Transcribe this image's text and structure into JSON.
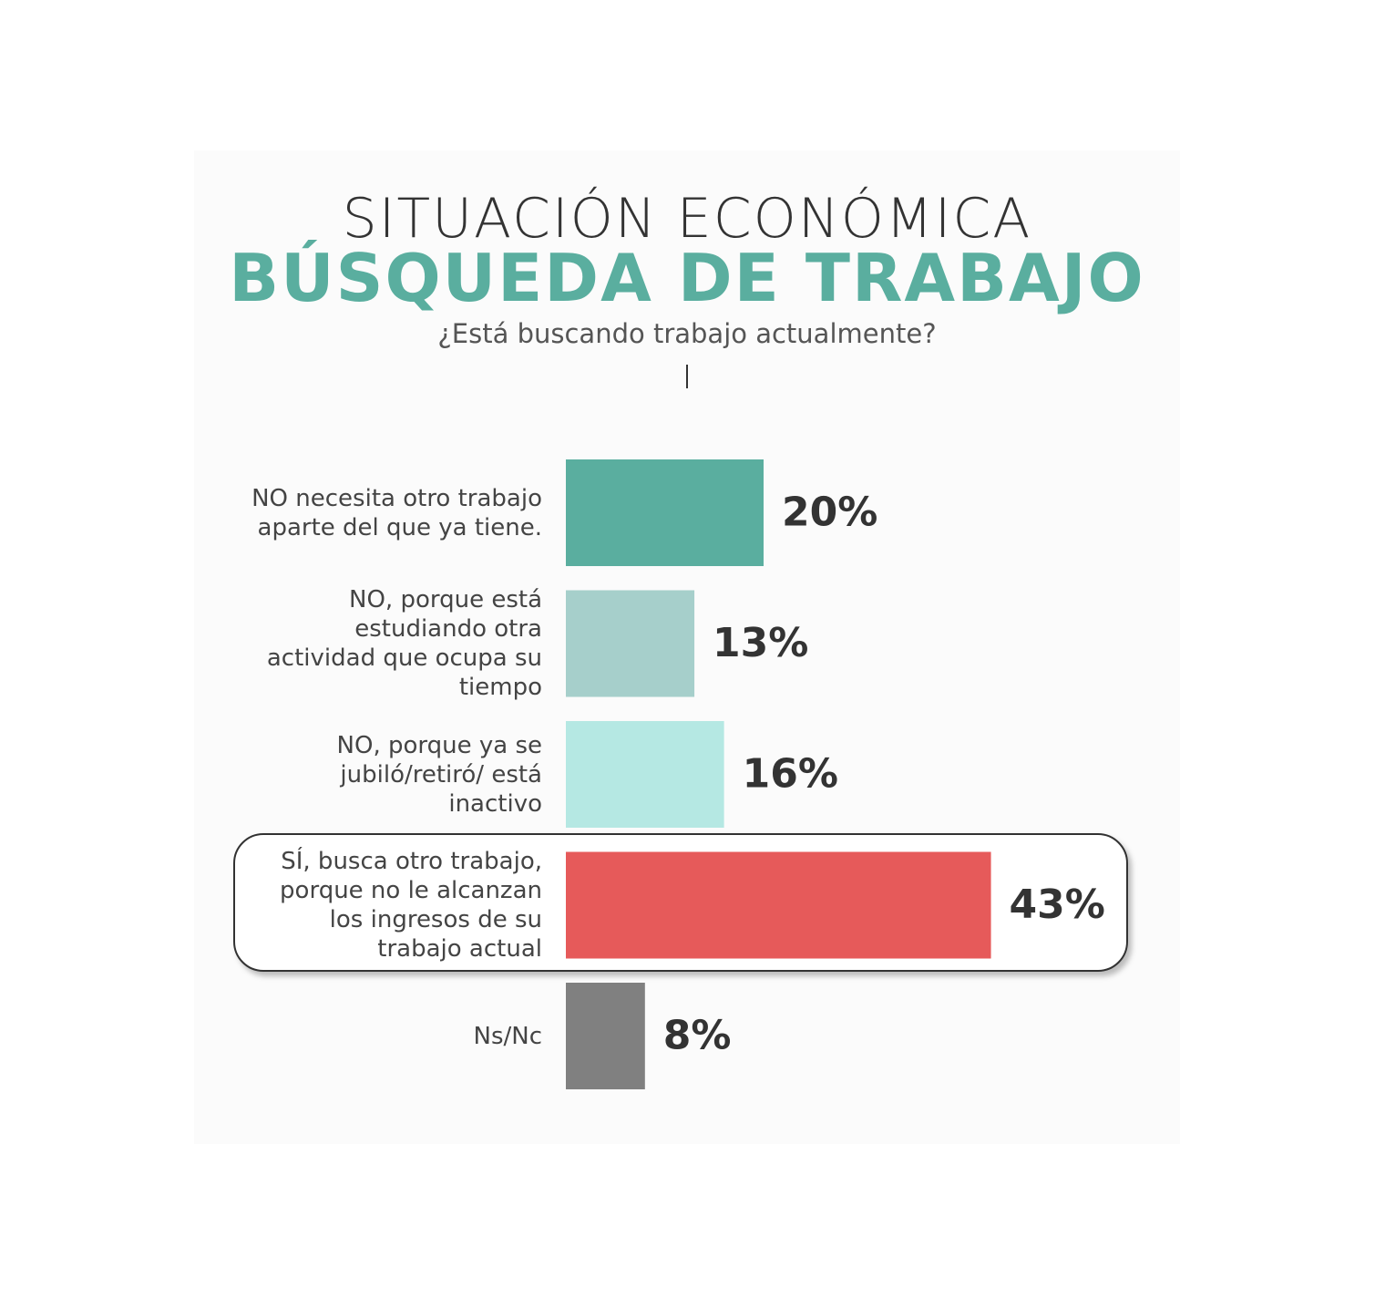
{
  "title": "SITUACIÓN ECONÓMICA",
  "chart_data": {
    "type": "bar",
    "orientation": "horizontal",
    "title": "BÚSQUEDA DE TRABAJO",
    "subtitle": "¿Está buscando trabajo actualmente?",
    "categories": [
      "NO necesita otro trabajo aparte del que ya tiene.",
      "NO, porque está estudiando otra actividad que ocupa su tiempo",
      "NO, porque ya se jubiló/retiró/ está inactivo",
      "SÍ, busca otro trabajo, porque no le alcanzan los ingresos de su trabajo actual",
      "Ns/Nc"
    ],
    "values": [
      20,
      13,
      16,
      43,
      8
    ],
    "value_labels": [
      "20%",
      "13%",
      "16%",
      "43%",
      "8%"
    ],
    "colors": [
      "#5aae9f",
      "#a6cfcb",
      "#b5e8e3",
      "#e65a5a",
      "#808080"
    ]
  }
}
